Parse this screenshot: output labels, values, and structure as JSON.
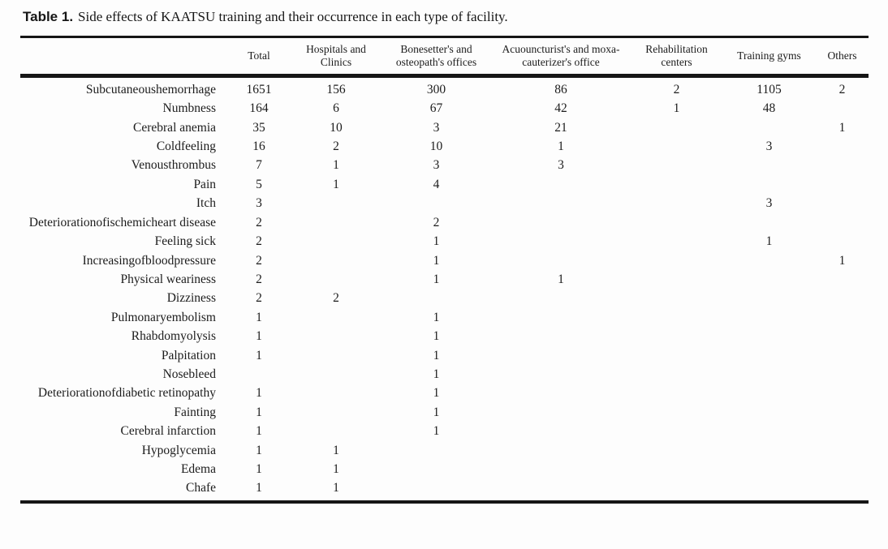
{
  "title": {
    "prefix": "Table 1.",
    "text": "Side effects of KAATSU training and their occurrence in each type of facility."
  },
  "table": {
    "row_label_header": "",
    "columns": [
      "Total",
      "Hospitals and Clinics",
      "Bonesetter's and osteopath's offices",
      "Acuouncturist's and moxa-cauterizer's office",
      "Rehabilitation centers",
      "Training gyms",
      "Others"
    ],
    "rows": [
      {
        "label": "Subcutaneoushemorrhage",
        "values": [
          "1651",
          "156",
          "300",
          "86",
          "2",
          "1105",
          "2"
        ]
      },
      {
        "label": "Numbness",
        "values": [
          "164",
          "6",
          "67",
          "42",
          "1",
          "48",
          ""
        ]
      },
      {
        "label": "Cerebral anemia",
        "values": [
          "35",
          "10",
          "3",
          "21",
          "",
          "",
          "1"
        ]
      },
      {
        "label": "Coldfeeling",
        "values": [
          "16",
          "2",
          "10",
          "1",
          "",
          "3",
          ""
        ]
      },
      {
        "label": "Venousthrombus",
        "values": [
          "7",
          "1",
          "3",
          "3",
          "",
          "",
          ""
        ]
      },
      {
        "label": "Pain",
        "values": [
          "5",
          "1",
          "4",
          "",
          "",
          "",
          ""
        ]
      },
      {
        "label": "Itch",
        "values": [
          "3",
          "",
          "",
          "",
          "",
          "3",
          ""
        ]
      },
      {
        "label": "Deteriorationofischemicheart disease",
        "values": [
          "2",
          "",
          "2",
          "",
          "",
          "",
          ""
        ]
      },
      {
        "label": "Feeling sick",
        "values": [
          "2",
          "",
          "1",
          "",
          "",
          "1",
          ""
        ]
      },
      {
        "label": "Increasingofbloodpressure",
        "values": [
          "2",
          "",
          "1",
          "",
          "",
          "",
          "1"
        ]
      },
      {
        "label": "Physical weariness",
        "values": [
          "2",
          "",
          "1",
          "1",
          "",
          "",
          ""
        ]
      },
      {
        "label": "Dizziness",
        "values": [
          "2",
          "2",
          "",
          "",
          "",
          "",
          ""
        ]
      },
      {
        "label": "Pulmonaryembolism",
        "values": [
          "1",
          "",
          "1",
          "",
          "",
          "",
          ""
        ]
      },
      {
        "label": "Rhabdomyolysis",
        "values": [
          "1",
          "",
          "1",
          "",
          "",
          "",
          ""
        ]
      },
      {
        "label": "Palpitation",
        "values": [
          "1",
          "",
          "1",
          "",
          "",
          "",
          ""
        ]
      },
      {
        "label": "Nosebleed",
        "values": [
          "",
          "",
          "1",
          "",
          "",
          "",
          ""
        ]
      },
      {
        "label": "Deteriorationofdiabetic retinopathy",
        "values": [
          "1",
          "",
          "1",
          "",
          "",
          "",
          ""
        ]
      },
      {
        "label": "Fainting",
        "values": [
          "1",
          "",
          "1",
          "",
          "",
          "",
          ""
        ]
      },
      {
        "label": "Cerebral infarction",
        "values": [
          "1",
          "",
          "1",
          "",
          "",
          "",
          ""
        ]
      },
      {
        "label": "Hypoglycemia",
        "values": [
          "1",
          "1",
          "",
          "",
          "",
          "",
          ""
        ]
      },
      {
        "label": "Edema",
        "values": [
          "1",
          "1",
          "",
          "",
          "",
          "",
          ""
        ]
      },
      {
        "label": "Chafe",
        "values": [
          "1",
          "1",
          "",
          "",
          "",
          "",
          ""
        ]
      }
    ]
  },
  "colors": {
    "text": "#1c1c1c",
    "rule": "#161616",
    "background": "#fdfdfd"
  }
}
